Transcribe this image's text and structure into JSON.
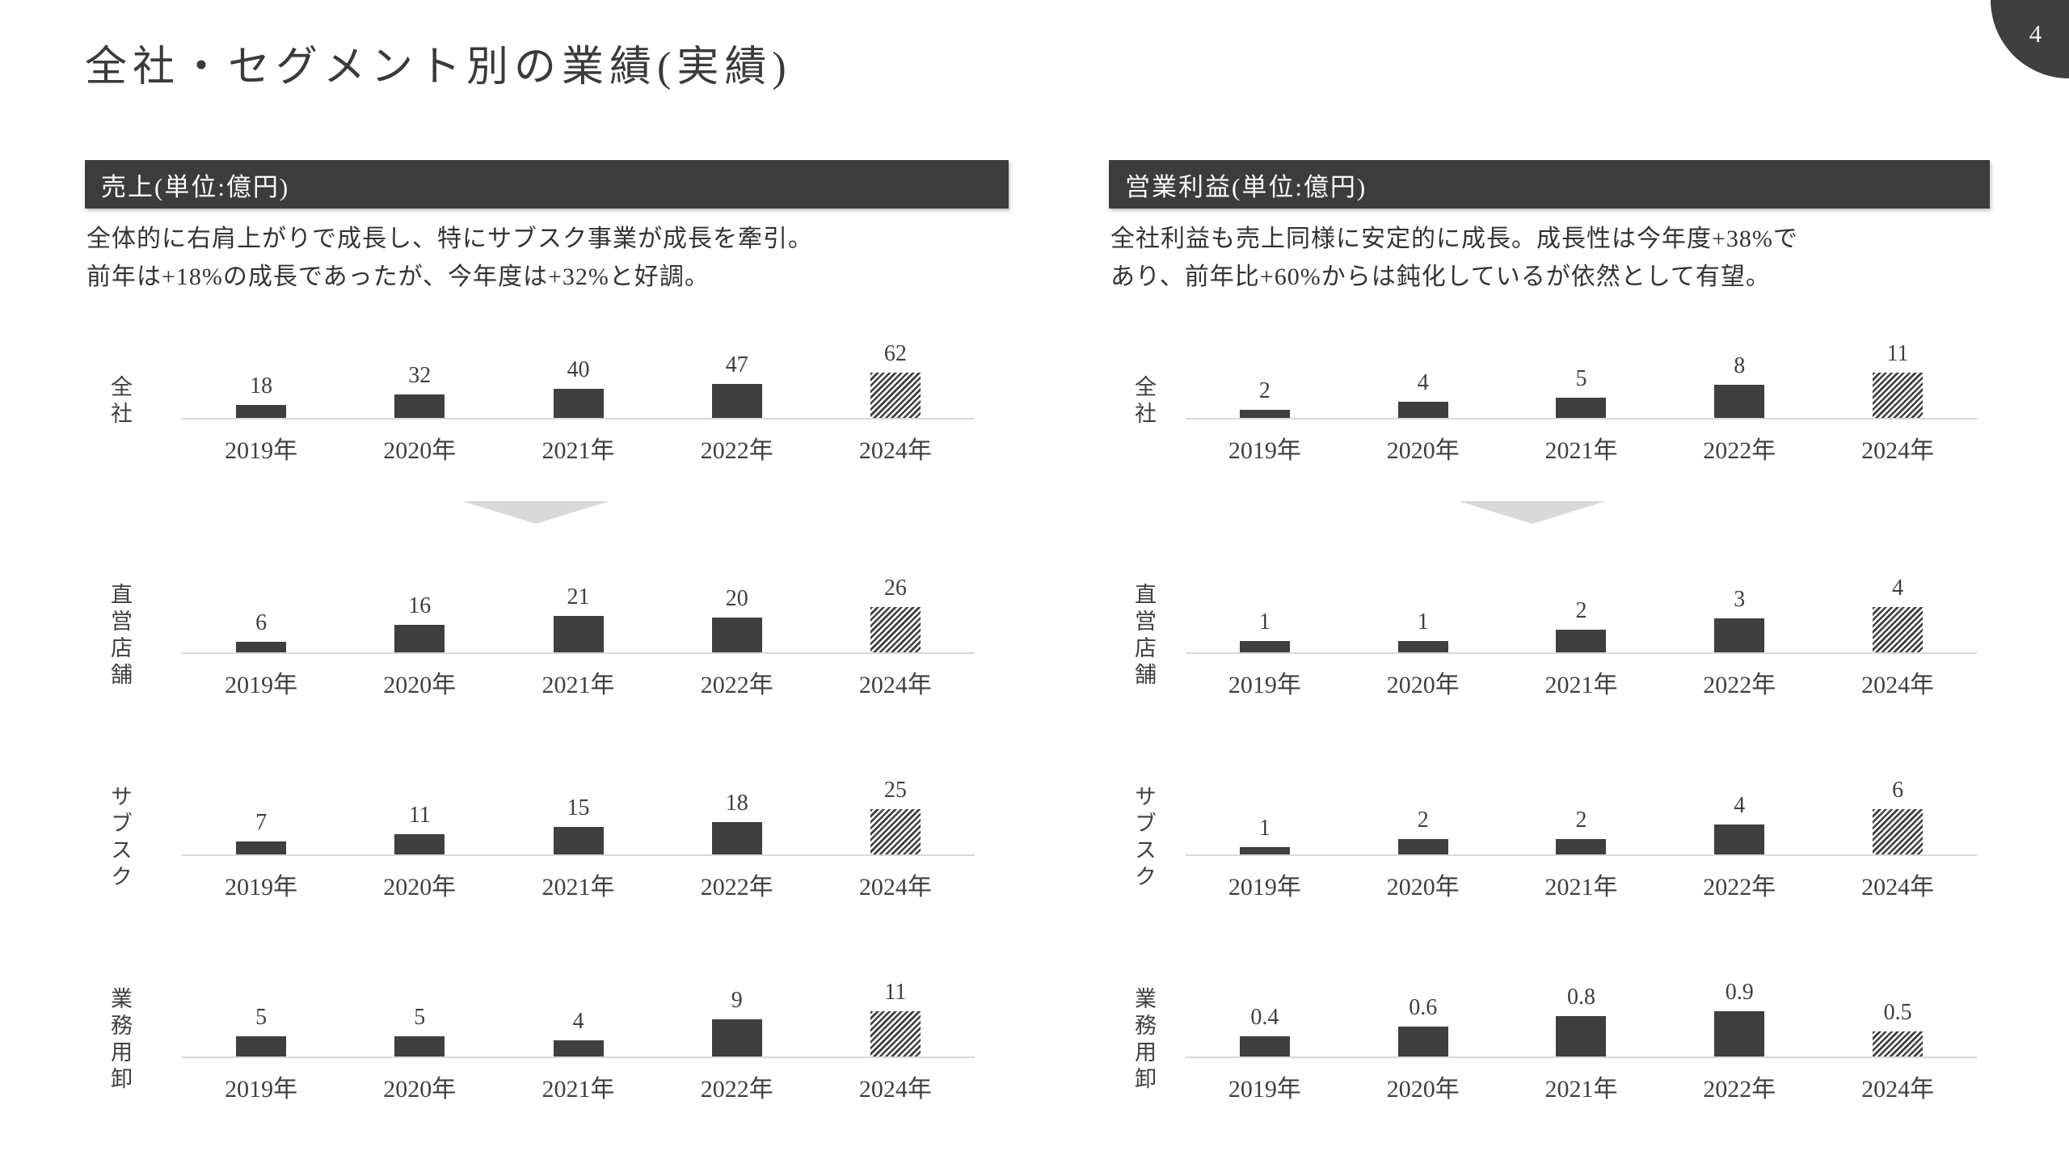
{
  "slide": {
    "title": "全社・セグメント別の業績(実績)",
    "page_number": "4"
  },
  "colors": {
    "accent_dark": "#3f3f3f",
    "header_bar": "#3c3c3c",
    "light_gray": "#d9d9d9",
    "background": "#ffffff"
  },
  "columns": [
    {
      "header": "売上(単位:億円)",
      "description_lines": [
        "全体的に右肩上がりで成長し、特にサブスク事業が成長を牽引。",
        "前年は+18%の成長であったが、今年度は+32%と好調。"
      ]
    },
    {
      "header": "営業利益(単位:億円)",
      "description_lines": [
        "全社利益も売上同様に安定的に成長。成長性は今年度+38%で",
        "あり、前年比+60%からは鈍化しているが依然として有望。"
      ]
    }
  ],
  "chart_data": [
    {
      "type": "bar",
      "title": "売上(単位:億円)",
      "categories": [
        "2019年",
        "2020年",
        "2021年",
        "2022年",
        "2024年"
      ],
      "series": [
        {
          "name": "全社",
          "values": [
            18,
            32,
            40,
            47,
            62
          ]
        },
        {
          "name": "直営店舗",
          "values": [
            6,
            16,
            21,
            20,
            26
          ]
        },
        {
          "name": "サブスク",
          "values": [
            7,
            11,
            15,
            18,
            25
          ]
        },
        {
          "name": "業務用卸",
          "values": [
            5,
            5,
            4,
            9,
            11
          ]
        }
      ],
      "hatched_category_index": 4,
      "value_labels": true,
      "layout": "small multiples, one mini bar chart per series, y-axis hidden, each chart scaled to its own max, gray baseline only"
    },
    {
      "type": "bar",
      "title": "営業利益(単位:億円)",
      "categories": [
        "2019年",
        "2020年",
        "2021年",
        "2022年",
        "2024年"
      ],
      "series": [
        {
          "name": "全社",
          "values": [
            2,
            4,
            5,
            8,
            11
          ]
        },
        {
          "name": "直営店舗",
          "values": [
            1,
            1,
            2,
            3,
            4
          ]
        },
        {
          "name": "サブスク",
          "values": [
            1,
            2,
            2,
            4,
            6
          ]
        },
        {
          "name": "業務用卸",
          "values": [
            0.4,
            0.6,
            0.8,
            0.9,
            0.5
          ]
        }
      ],
      "hatched_category_index": 4,
      "value_labels": true,
      "layout": "small multiples, one mini bar chart per series, y-axis hidden, each chart scaled to its own max, gray baseline only"
    }
  ]
}
